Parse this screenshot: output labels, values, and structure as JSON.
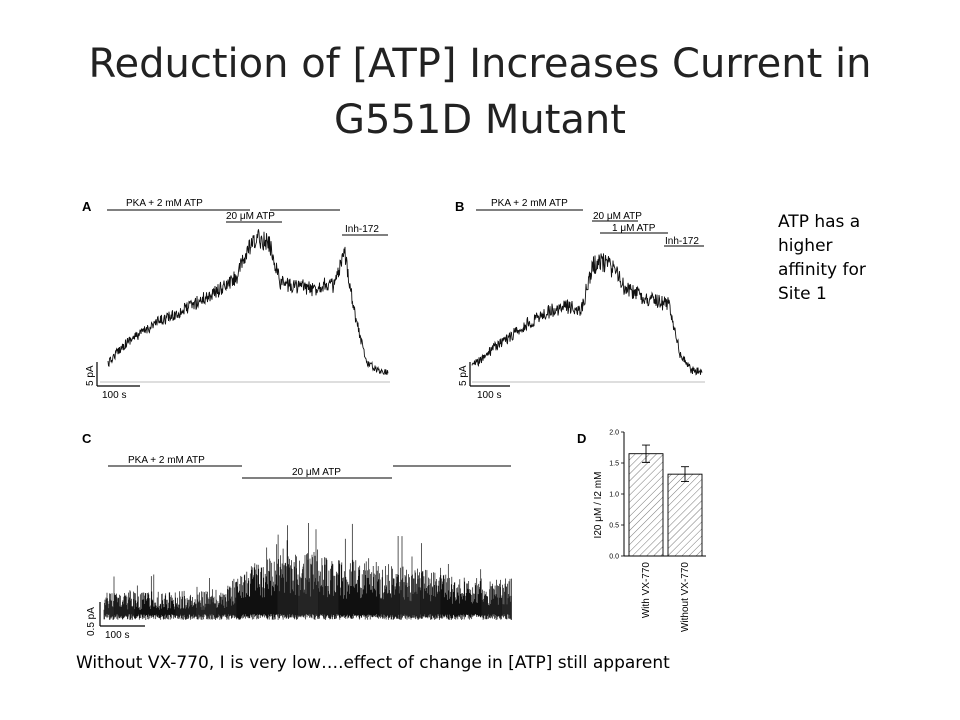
{
  "title_line1": "Reduction of [ATP] Increases Current in",
  "title_line2": "G551D Mutant",
  "side_note": [
    "ATP has a",
    "higher",
    "affinity for",
    "Site 1"
  ],
  "caption": "Without VX-770, I is very low….effect of change in [ATP] still apparent",
  "colors": {
    "trace": "#111111",
    "baseline": "#bdbdbd",
    "bar_fill": "#ffffff",
    "hatch": "#555555"
  },
  "chart_data": [
    {
      "type": "line",
      "panel": "A",
      "annotations": [
        "PKA + 2 mM ATP",
        "20 μM ATP",
        "Inh-172"
      ],
      "scale_y": "5 pA",
      "scale_x": "100 s",
      "trace_y": [
        0.9,
        1.6,
        2.1,
        2.4,
        2.8,
        3.1,
        3.3,
        3.6,
        3.9,
        4.2,
        4.5,
        4.8,
        5.3,
        6.6,
        7.2,
        6.9,
        5.0,
        4.8,
        4.8,
        4.6,
        4.9,
        4.8,
        6.4,
        3.2,
        1.0,
        0.6,
        0.5
      ]
    },
    {
      "type": "line",
      "panel": "B",
      "annotations": [
        "PKA + 2 mM ATP",
        "20 μM ATP",
        "1 μM ATP",
        "Inh-172"
      ],
      "scale_y": "5 pA",
      "scale_x": "100 s",
      "trace_y": [
        0.8,
        1.2,
        1.7,
        2.1,
        2.5,
        2.9,
        3.2,
        3.5,
        3.7,
        3.8,
        3.6,
        5.8,
        6.0,
        5.6,
        4.6,
        4.4,
        4.2,
        4.0,
        3.9,
        1.4,
        0.6,
        0.5
      ]
    },
    {
      "type": "line",
      "panel": "C",
      "annotations": [
        "PKA + 2 mM ATP",
        "20 μM ATP"
      ],
      "scale_y": "0.5 pA",
      "scale_x": "100 s",
      "trace_y": [
        0.9,
        0.9,
        0.9,
        0.9,
        0.9,
        1.8,
        2.0,
        2.1,
        1.9,
        1.9,
        1.7,
        1.6,
        1.4,
        1.3,
        1.3
      ]
    },
    {
      "type": "bar",
      "panel": "D",
      "categories": [
        "With VX-770",
        "Without VX-770"
      ],
      "values": [
        1.65,
        1.32
      ],
      "errors": [
        0.14,
        0.12
      ],
      "ylabel": "I20 μM / I2 mM",
      "ylim": [
        0,
        2.0
      ],
      "yticks": [
        "0.0",
        "0.5",
        "1.0",
        "1.5",
        "2.0"
      ]
    }
  ]
}
